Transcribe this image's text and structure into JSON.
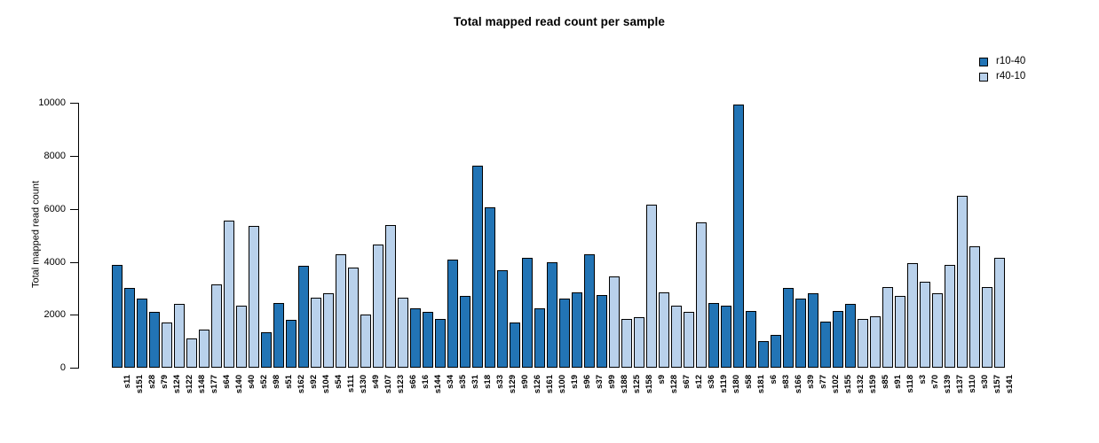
{
  "title": "Total mapped read count per sample",
  "y_axis": {
    "label": "Total mapped read count",
    "ticks": [
      0,
      2000,
      4000,
      6000,
      8000,
      10000
    ]
  },
  "legend": {
    "items": [
      {
        "label": "r10-40",
        "color": "#2274b5"
      },
      {
        "label": "r40-10",
        "color": "#b9d1eb"
      }
    ]
  },
  "chart_data": {
    "type": "bar",
    "title": "Total mapped read count per sample",
    "xlabel": "",
    "ylabel": "Total mapped read count",
    "ylim": [
      0,
      10000
    ],
    "yticks": [
      0,
      2000,
      4000,
      6000,
      8000,
      10000
    ],
    "grid": false,
    "legend_position": "top-right",
    "series": [
      {
        "name": "r10-40",
        "color": "#2274b5"
      },
      {
        "name": "r40-10",
        "color": "#b9d1eb"
      }
    ],
    "categories": [
      "s11",
      "s151",
      "s28",
      "s79",
      "s124",
      "s122",
      "s148",
      "s177",
      "s64",
      "s140",
      "s40",
      "s52",
      "s98",
      "s51",
      "s162",
      "s92",
      "s104",
      "s54",
      "s111",
      "s130",
      "s49",
      "s107",
      "s123",
      "s66",
      "s16",
      "s144",
      "s34",
      "s35",
      "s31",
      "s18",
      "s33",
      "s129",
      "s90",
      "s126",
      "s161",
      "s100",
      "s19",
      "s96",
      "s37",
      "s99",
      "s188",
      "s125",
      "s158",
      "s9",
      "s128",
      "s67",
      "s12",
      "s36",
      "s119",
      "s180",
      "s58",
      "s181",
      "s6",
      "s83",
      "s166",
      "s39",
      "s77",
      "s102",
      "s155",
      "s132",
      "s159",
      "s85",
      "s91",
      "s118",
      "s3",
      "s70",
      "s139",
      "s137",
      "s110",
      "s30",
      "s157",
      "s141"
    ],
    "values": [
      3900,
      3000,
      2600,
      2100,
      1700,
      2400,
      1100,
      1450,
      3150,
      5550,
      2350,
      5350,
      1350,
      2450,
      1800,
      3850,
      2650,
      2800,
      4300,
      3800,
      2000,
      4650,
      5400,
      2650,
      2250,
      2100,
      1850,
      4100,
      2700,
      7650,
      6050,
      3700,
      1700,
      4150,
      2250,
      4000,
      2600,
      2850,
      4300,
      2750,
      3450,
      1850,
      1900,
      6150,
      2850,
      2350,
      2100,
      5500,
      2450,
      2350,
      9950,
      2150,
      1000,
      1250,
      3000,
      2600,
      2800,
      1750,
      2150,
      2400,
      1850,
      1950,
      3050,
      2700,
      3950,
      3250,
      2800,
      3900,
      6500,
      4600,
      3050,
      4150
    ],
    "series_index": [
      0,
      0,
      0,
      0,
      1,
      1,
      1,
      1,
      1,
      1,
      1,
      1,
      0,
      0,
      0,
      0,
      1,
      1,
      1,
      1,
      1,
      1,
      1,
      1,
      0,
      0,
      0,
      0,
      0,
      0,
      0,
      0,
      0,
      0,
      0,
      0,
      0,
      0,
      0,
      0,
      1,
      1,
      1,
      1,
      1,
      1,
      1,
      1,
      0,
      0,
      0,
      0,
      0,
      0,
      0,
      0,
      0,
      0,
      0,
      0,
      1,
      1,
      1,
      1,
      1,
      1,
      1,
      1,
      1,
      1,
      1,
      1
    ]
  }
}
